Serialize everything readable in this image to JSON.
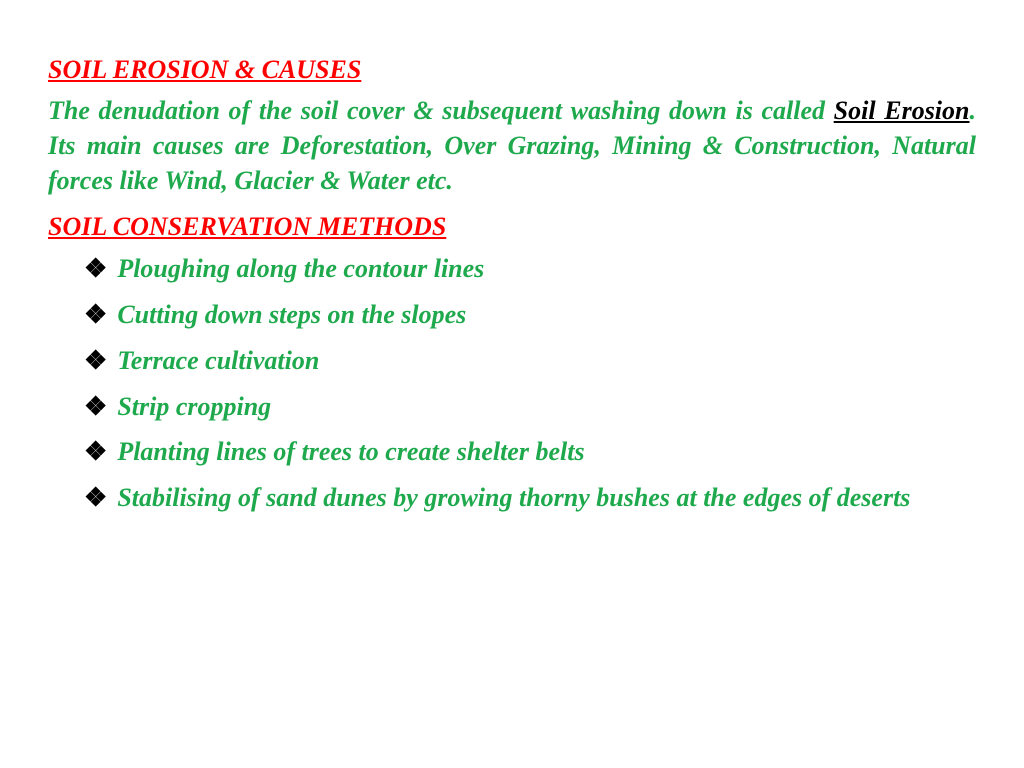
{
  "colors": {
    "heading": "#ff0000",
    "body": "#1fa94d",
    "term": "#000000",
    "bullet_marker": "#000000",
    "background": "#ffffff"
  },
  "typography": {
    "family": "Times New Roman",
    "size_pt": 26,
    "weight": "bold",
    "style": "italic",
    "body_align": "justify"
  },
  "heading1": "SOIL EROSION & CAUSES",
  "para_pre": "The denudation of the soil cover & subsequent washing down is called ",
  "para_term": "Soil Erosion",
  "para_dot": ".",
  "para_post": " Its main causes are Deforestation, Over Grazing, Mining & Construction, Natural forces like Wind, Glacier & Water etc.",
  "heading2": "SOIL CONSERVATION METHODS",
  "methods": [
    "Ploughing along the contour lines",
    "Cutting down steps on the slopes",
    "Terrace cultivation",
    "Strip cropping",
    "Planting lines of trees to create shelter belts",
    "Stabilising of sand dunes by growing thorny bushes at the edges of deserts"
  ]
}
